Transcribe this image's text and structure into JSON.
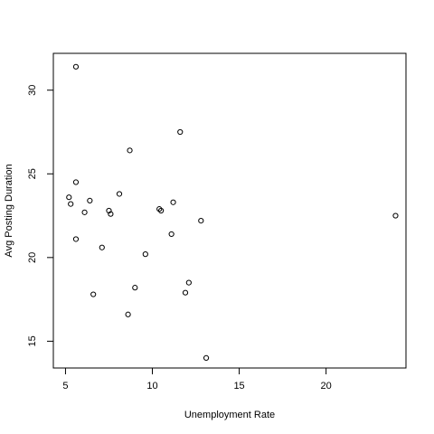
{
  "chart_data": {
    "type": "scatter",
    "title": "",
    "xlabel": "Unemployment Rate",
    "ylabel": "Avg Posting Duration",
    "xlim": [
      4.3,
      24.6
    ],
    "ylim": [
      13.4,
      32.2
    ],
    "x_ticks": [
      5,
      10,
      15,
      20
    ],
    "y_ticks": [
      15,
      20,
      25,
      30
    ],
    "grid": false,
    "legend": "none",
    "marker": "open-circle",
    "points": [
      {
        "x": 5.6,
        "y": 31.4
      },
      {
        "x": 5.2,
        "y": 23.6
      },
      {
        "x": 5.3,
        "y": 23.2
      },
      {
        "x": 5.6,
        "y": 24.5
      },
      {
        "x": 5.6,
        "y": 21.1
      },
      {
        "x": 6.1,
        "y": 22.7
      },
      {
        "x": 6.4,
        "y": 23.4
      },
      {
        "x": 6.6,
        "y": 17.8
      },
      {
        "x": 7.1,
        "y": 20.6
      },
      {
        "x": 7.5,
        "y": 22.8
      },
      {
        "x": 7.6,
        "y": 22.6
      },
      {
        "x": 8.1,
        "y": 23.8
      },
      {
        "x": 8.6,
        "y": 16.6
      },
      {
        "x": 8.7,
        "y": 26.4
      },
      {
        "x": 9.0,
        "y": 18.2
      },
      {
        "x": 9.6,
        "y": 20.2
      },
      {
        "x": 10.4,
        "y": 22.9
      },
      {
        "x": 10.5,
        "y": 22.8
      },
      {
        "x": 11.1,
        "y": 21.4
      },
      {
        "x": 11.2,
        "y": 23.3
      },
      {
        "x": 11.6,
        "y": 27.5
      },
      {
        "x": 11.9,
        "y": 17.9
      },
      {
        "x": 12.1,
        "y": 18.5
      },
      {
        "x": 12.8,
        "y": 22.2
      },
      {
        "x": 13.1,
        "y": 14.0
      },
      {
        "x": 24.0,
        "y": 22.5
      }
    ]
  }
}
